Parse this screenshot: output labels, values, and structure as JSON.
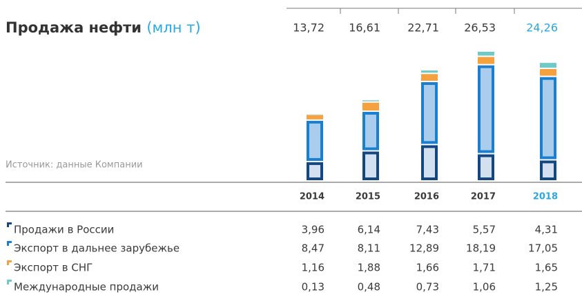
{
  "chart_data": {
    "type": "stacked-bar",
    "title": "Продажа нефти",
    "unit": "(млн т)",
    "source": "Источник: данные Компании",
    "categories": [
      "2014",
      "2015",
      "2016",
      "2017",
      "2018"
    ],
    "totals": [
      13.72,
      16.61,
      22.71,
      26.53,
      24.26
    ],
    "total_labels": [
      "13,72",
      "16,61",
      "22,71",
      "26,53",
      "24,26"
    ],
    "highlight_color": "#29a8e0",
    "series": [
      {
        "name": "Продажи в России",
        "color": "#14467f",
        "fill": "#d3e0ef",
        "values": [
          3.96,
          6.14,
          7.43,
          5.57,
          4.31
        ],
        "value_labels": [
          "3,96",
          "6,14",
          "7,43",
          "5,57",
          "4,31"
        ]
      },
      {
        "name": "Экспорт в дальнее зарубежье",
        "color": "#1b7fcf",
        "fill": "#aacdee",
        "values": [
          8.47,
          8.11,
          12.89,
          18.19,
          17.05
        ],
        "value_labels": [
          "8,47",
          "8,11",
          "12,89",
          "18,19",
          "17,05"
        ]
      },
      {
        "name": "Экспорт в СНГ",
        "color": "#f5a13f",
        "fill": "#f5a13f",
        "values": [
          1.16,
          1.88,
          1.66,
          1.71,
          1.65
        ],
        "value_labels": [
          "1,16",
          "1,88",
          "1,66",
          "1,71",
          "1,65"
        ]
      },
      {
        "name": "Международные продажи",
        "color": "#6ecac7",
        "fill": "#6ecac7",
        "values": [
          0.13,
          0.48,
          0.73,
          1.06,
          1.25
        ],
        "value_labels": [
          "0,13",
          "0,48",
          "0,73",
          "1,06",
          "1,25"
        ]
      }
    ]
  }
}
